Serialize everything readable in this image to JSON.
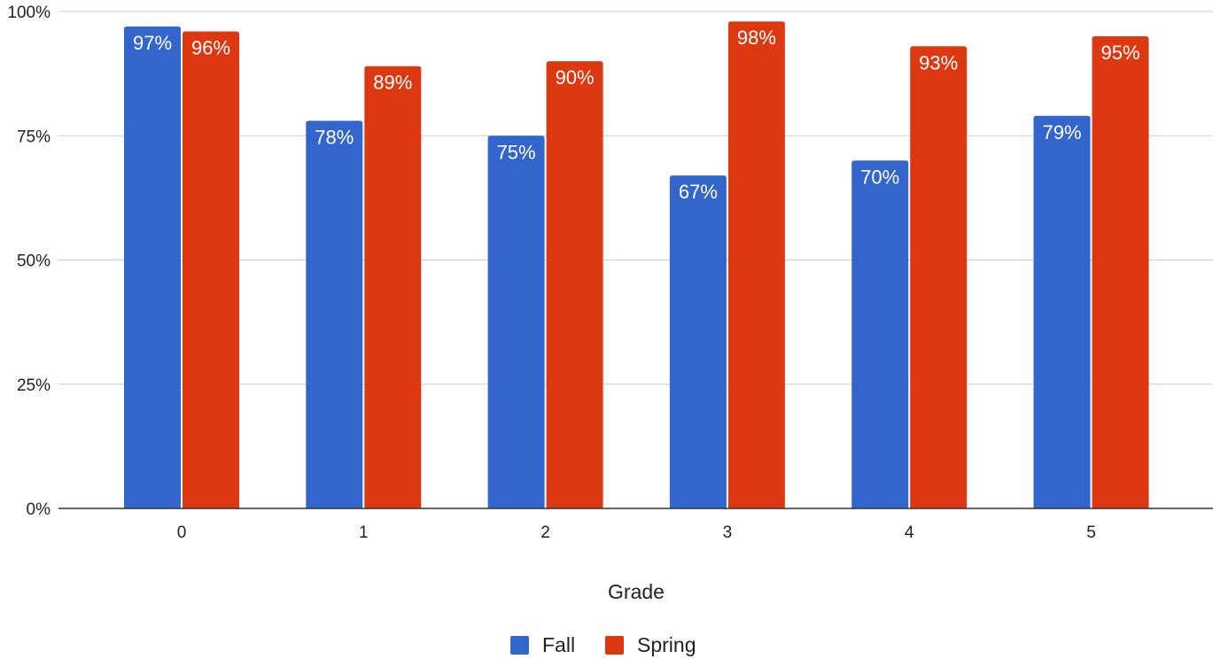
{
  "chart_data": {
    "type": "bar",
    "categories": [
      "0",
      "1",
      "2",
      "3",
      "4",
      "5"
    ],
    "series": [
      {
        "name": "Fall",
        "color": "#3366cc",
        "values": [
          97,
          78,
          75,
          67,
          70,
          79
        ],
        "labels": [
          "97%",
          "78%",
          "75%",
          "67%",
          "70%",
          "79%"
        ]
      },
      {
        "name": "Spring",
        "color": "#dc3912",
        "values": [
          96,
          89,
          90,
          98,
          93,
          95
        ],
        "labels": [
          "96%",
          "89%",
          "90%",
          "98%",
          "93%",
          "95%"
        ]
      }
    ],
    "xlabel": "Grade",
    "ylabel": "",
    "ylim": [
      0,
      100
    ],
    "yticks": [
      0,
      25,
      50,
      75,
      100
    ],
    "ytick_labels": [
      "0%",
      "25%",
      "50%",
      "75%",
      "100%"
    ],
    "grid": true,
    "legend": "bottom"
  }
}
